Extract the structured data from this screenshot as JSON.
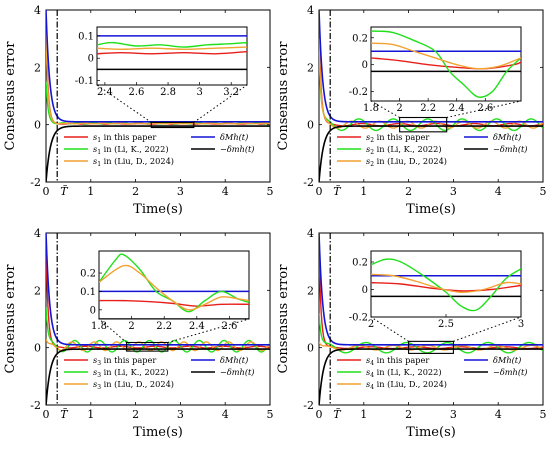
{
  "figure": {
    "xlabel": "Time(s)",
    "ylabel": "Consensus error",
    "colors": {
      "this_paper": "#e8201c",
      "li": "#21e01b",
      "liu": "#f2a233",
      "upper": "#1414d6",
      "lower": "#000000"
    }
  },
  "chart_data": [
    {
      "type": "line",
      "panel": "s1",
      "xlim": [
        0,
        5
      ],
      "ylim": [
        -2,
        4
      ],
      "x_ticks": [
        "0",
        "1",
        "2",
        "3",
        "4",
        "5"
      ],
      "y_ticks": [
        "-2",
        "0",
        "2",
        "4"
      ],
      "T_label": "T̃",
      "T_value": 0.25,
      "series": [
        {
          "name": "s1 in this paper",
          "sub": "1",
          "tail": " in this paper",
          "key": "this_paper",
          "peak": 3.6,
          "tail_offset": 0.03,
          "tail_amp": 0.01,
          "tail_freq": 2.0
        },
        {
          "name": "s1 in (Li, K., 2022)",
          "sub": "1",
          "tail": " in (Li, K., 2022)",
          "key": "li",
          "peak": 1.5,
          "tail_offset": 0.05,
          "tail_amp": 0.02,
          "tail_freq": 3.0
        },
        {
          "name": "s1 in (Liu, D., 2024)",
          "sub": "1",
          "tail": " in (Liu, D., 2024)",
          "key": "liu",
          "peak": 3.2,
          "tail_offset": 0.04,
          "tail_amp": 0.01,
          "tail_freq": 2.5
        },
        {
          "name": "δMh(t)",
          "key": "upper",
          "bound": "upper"
        },
        {
          "name": "−δmh(t)",
          "key": "lower",
          "bound": "lower"
        }
      ],
      "inset": {
        "xlim": [
          2.35,
          3.3
        ],
        "ylim": [
          -0.12,
          0.14
        ],
        "x_ticks": [
          "2.4",
          "2.6",
          "2.8",
          "3",
          "3.2"
        ],
        "y_ticks": [
          "0.1",
          "0",
          "-0.1"
        ],
        "bound_upper": 0.1,
        "bound_lower": -0.05,
        "curves": [
          {
            "key": "this_paper",
            "x": [
              2.35,
              2.5,
              2.7,
              2.9,
              3.1,
              3.3
            ],
            "y": [
              0.02,
              0.025,
              0.02,
              0.025,
              0.02,
              0.03
            ]
          },
          {
            "key": "li",
            "x": [
              2.35,
              2.45,
              2.6,
              2.75,
              2.9,
              3.05,
              3.2,
              3.3
            ],
            "y": [
              0.06,
              0.07,
              0.055,
              0.06,
              0.05,
              0.06,
              0.065,
              0.07
            ]
          },
          {
            "key": "liu",
            "x": [
              2.35,
              2.5,
              2.7,
              2.9,
              3.1,
              3.3
            ],
            "y": [
              0.045,
              0.04,
              0.045,
              0.04,
              0.045,
              0.05
            ]
          }
        ]
      }
    },
    {
      "type": "line",
      "panel": "s2",
      "xlim": [
        0,
        5
      ],
      "ylim": [
        -2,
        4
      ],
      "x_ticks": [
        "0",
        "1",
        "2",
        "3",
        "4",
        "5"
      ],
      "y_ticks": [
        "-2",
        "0",
        "2",
        "4"
      ],
      "T_label": "T̃",
      "T_value": 0.25,
      "series": [
        {
          "name": "s2 in this paper",
          "sub": "2",
          "tail": " in this paper",
          "key": "this_paper",
          "peak": 3.6,
          "tail_offset": 0.0,
          "tail_amp": 0.04,
          "tail_freq": 1.2
        },
        {
          "name": "s2 in (Li, K., 2022)",
          "sub": "2",
          "tail": " in (Li, K., 2022)",
          "key": "li",
          "peak": 2.6,
          "tail_offset": 0.0,
          "tail_amp": 0.2,
          "tail_freq": 1.3
        },
        {
          "name": "s2 in (Liu, D., 2024)",
          "sub": "2",
          "tail": " in (Liu, D., 2024)",
          "key": "liu",
          "peak": 3.0,
          "tail_offset": 0.0,
          "tail_amp": 0.12,
          "tail_freq": 1.6
        },
        {
          "name": "δMh(t)",
          "key": "upper",
          "bound": "upper"
        },
        {
          "name": "−δmh(t)",
          "key": "lower",
          "bound": "lower"
        }
      ],
      "inset": {
        "xlim": [
          1.8,
          2.85
        ],
        "ylim": [
          -0.27,
          0.28
        ],
        "x_ticks": [
          "1.8",
          "2",
          "2.2",
          "2.4",
          "2.6"
        ],
        "y_ticks": [
          "0.2",
          "0",
          "-0.2"
        ],
        "bound_upper": 0.1,
        "bound_lower": -0.05,
        "curves": [
          {
            "key": "this_paper",
            "x": [
              1.8,
              2.0,
              2.2,
              2.4,
              2.6,
              2.8,
              2.85
            ],
            "y": [
              0.05,
              0.03,
              0.0,
              -0.02,
              -0.03,
              0.0,
              0.02
            ]
          },
          {
            "key": "li",
            "x": [
              1.8,
              1.95,
              2.1,
              2.25,
              2.35,
              2.45,
              2.55,
              2.65,
              2.75,
              2.85
            ],
            "y": [
              0.25,
              0.24,
              0.18,
              0.1,
              -0.05,
              -0.15,
              -0.24,
              -0.2,
              -0.05,
              0.05
            ]
          },
          {
            "key": "liu",
            "x": [
              1.8,
              1.95,
              2.1,
              2.25,
              2.4,
              2.55,
              2.7,
              2.85
            ],
            "y": [
              0.16,
              0.15,
              0.1,
              0.05,
              0.0,
              -0.03,
              -0.01,
              0.05
            ]
          }
        ]
      }
    },
    {
      "type": "line",
      "panel": "s3",
      "xlim": [
        0,
        5
      ],
      "ylim": [
        -2,
        4
      ],
      "x_ticks": [
        "0",
        "1",
        "2",
        "3",
        "4",
        "5"
      ],
      "y_ticks": [
        "-2",
        "0",
        "2",
        "4"
      ],
      "T_label": "T̃",
      "T_value": 0.25,
      "series": [
        {
          "name": "s3 in this paper",
          "sub": "3",
          "tail": " in this paper",
          "key": "this_paper",
          "peak": 3.7,
          "tail_offset": 0.02,
          "tail_amp": 0.03,
          "tail_freq": 1.3
        },
        {
          "name": "s3 in (Li, K., 2022)",
          "sub": "3",
          "tail": " in (Li, K., 2022)",
          "key": "li",
          "peak": 1.4,
          "tail_offset": 0.05,
          "tail_amp": 0.2,
          "tail_freq": 1.8
        },
        {
          "name": "s3 in (Liu, D., 2024)",
          "sub": "3",
          "tail": " in (Liu, D., 2024)",
          "key": "liu",
          "peak": 0.3,
          "tail_offset": 0.05,
          "tail_amp": 0.15,
          "tail_freq": 2.0
        },
        {
          "name": "δMh(t)",
          "key": "upper",
          "bound": "upper"
        },
        {
          "name": "−δmh(t)",
          "key": "lower",
          "bound": "lower"
        }
      ],
      "inset": {
        "xlim": [
          1.8,
          2.72
        ],
        "ylim": [
          -0.05,
          0.32
        ],
        "x_ticks": [
          "1.8",
          "2",
          "2.2",
          "2.4",
          "2.6"
        ],
        "y_ticks": [
          "0.2",
          "0.1",
          "0"
        ],
        "bound_upper": 0.1,
        "bound_lower": -0.05,
        "curves": [
          {
            "key": "this_paper",
            "x": [
              1.8,
              1.95,
              2.1,
              2.25,
              2.4,
              2.55,
              2.72
            ],
            "y": [
              0.05,
              0.05,
              0.045,
              0.035,
              0.02,
              0.03,
              0.03
            ]
          },
          {
            "key": "li",
            "x": [
              1.8,
              1.9,
              1.95,
              2.05,
              2.15,
              2.25,
              2.35,
              2.45,
              2.55,
              2.65,
              2.72
            ],
            "y": [
              0.15,
              0.27,
              0.3,
              0.22,
              0.1,
              0.05,
              -0.01,
              0.05,
              0.1,
              0.06,
              0.04
            ]
          },
          {
            "key": "liu",
            "x": [
              1.8,
              1.95,
              2.05,
              2.15,
              2.25,
              2.35,
              2.45,
              2.55,
              2.65,
              2.72
            ],
            "y": [
              0.15,
              0.24,
              0.2,
              0.12,
              0.05,
              0.0,
              0.03,
              0.07,
              0.06,
              0.05
            ]
          }
        ]
      }
    },
    {
      "type": "line",
      "panel": "s4",
      "xlim": [
        0,
        5
      ],
      "ylim": [
        -2,
        4
      ],
      "x_ticks": [
        "0",
        "1",
        "2",
        "3",
        "4",
        "5"
      ],
      "y_ticks": [
        "-2",
        "0",
        "2",
        "4"
      ],
      "T_label": "T̃",
      "T_value": 0.25,
      "series": [
        {
          "name": "s4 in this paper",
          "sub": "4",
          "tail": " in this paper",
          "key": "this_paper",
          "peak": 3.6,
          "tail_offset": 0.0,
          "tail_amp": 0.03,
          "tail_freq": 1.0
        },
        {
          "name": "s4 in (Li, K., 2022)",
          "sub": "4",
          "tail": " in (Li, K., 2022)",
          "key": "li",
          "peak": 1.2,
          "tail_offset": 0.0,
          "tail_amp": 0.18,
          "tail_freq": 1.1
        },
        {
          "name": "s4 in (Liu, D., 2024)",
          "sub": "4",
          "tail": " in (Liu, D., 2024)",
          "key": "liu",
          "peak": 0.2,
          "tail_offset": 0.0,
          "tail_amp": 0.08,
          "tail_freq": 1.3
        },
        {
          "name": "δMh(t)",
          "key": "upper",
          "bound": "upper"
        },
        {
          "name": "−δmh(t)",
          "key": "lower",
          "bound": "lower"
        }
      ],
      "inset": {
        "xlim": [
          2.0,
          3.0
        ],
        "ylim": [
          -0.2,
          0.28
        ],
        "x_ticks": [
          "2",
          "2.5",
          "3"
        ],
        "y_ticks": [
          "0.2",
          "0",
          "-0.2"
        ],
        "bound_upper": 0.1,
        "bound_lower": -0.05,
        "curves": [
          {
            "key": "this_paper",
            "x": [
              2.0,
              2.2,
              2.4,
              2.6,
              2.8,
              3.0
            ],
            "y": [
              0.05,
              0.04,
              0.01,
              -0.01,
              0.0,
              0.03
            ]
          },
          {
            "key": "li",
            "x": [
              2.0,
              2.1,
              2.2,
              2.35,
              2.5,
              2.6,
              2.7,
              2.8,
              2.9,
              3.0
            ],
            "y": [
              0.18,
              0.22,
              0.2,
              0.1,
              -0.02,
              -0.12,
              -0.15,
              -0.05,
              0.08,
              0.15
            ]
          },
          {
            "key": "liu",
            "x": [
              2.0,
              2.15,
              2.3,
              2.45,
              2.6,
              2.75,
              2.9,
              3.0
            ],
            "y": [
              0.11,
              0.1,
              0.06,
              0.01,
              -0.02,
              0.0,
              0.05,
              0.04
            ]
          }
        ]
      }
    }
  ]
}
